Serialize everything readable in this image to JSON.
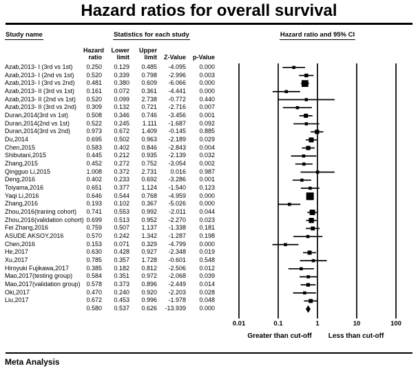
{
  "title": "Hazard ratios for overall survival",
  "headers": {
    "study": "Study name",
    "stats_group": "Statistics for each study",
    "plot_group": "Hazard ratio and 95% CI",
    "hazard_ratio": "Hazard\nratio",
    "lower_limit": "Lower\nlimit",
    "upper_limit": "Upper\nlimit",
    "z_value": "Z-Value",
    "p_value": "p-Value"
  },
  "axis": {
    "tick_labels": [
      "0.01",
      "0.1",
      "1",
      "10",
      "100"
    ],
    "left_label": "Greater than cut-off",
    "right_label": "Less than cut-off"
  },
  "footer": {
    "label": "Meta Analysis"
  },
  "colors": {
    "ink": "#000000",
    "background": "#ffffff"
  },
  "chart_data": {
    "type": "forest",
    "title": "Hazard ratios for overall survival",
    "x_scale": "log10",
    "x_ticks": [
      0.01,
      0.1,
      1,
      10,
      100
    ],
    "x_axis_left_label": "Greater than cut-off",
    "x_axis_right_label": "Less than cut-off",
    "studies": [
      {
        "name": "Azab,2013- I (3rd vs 1st)",
        "hr": 0.25,
        "lower": 0.129,
        "upper": 0.485,
        "z": -4.095,
        "p": 0.0
      },
      {
        "name": "Azab,2013- I (2nd vs 1st)",
        "hr": 0.52,
        "lower": 0.339,
        "upper": 0.798,
        "z": -2.996,
        "p": 0.003
      },
      {
        "name": "Azab,2013- I (3rd vs 2nd)",
        "hr": 0.481,
        "lower": 0.38,
        "upper": 0.609,
        "z": -6.066,
        "p": 0.0
      },
      {
        "name": "Azab,2013- II (3rd vs 1st)",
        "hr": 0.161,
        "lower": 0.072,
        "upper": 0.361,
        "z": -4.441,
        "p": 0.0
      },
      {
        "name": "Azab,2013- II (2nd vs 1st)",
        "hr": 0.52,
        "lower": 0.099,
        "upper": 2.738,
        "z": -0.772,
        "p": 0.44
      },
      {
        "name": "Azab,2013- II (3rd vs 2nd)",
        "hr": 0.309,
        "lower": 0.132,
        "upper": 0.721,
        "z": -2.716,
        "p": 0.007
      },
      {
        "name": "Duran,2014(3rd vs 1st)",
        "hr": 0.508,
        "lower": 0.346,
        "upper": 0.746,
        "z": -3.456,
        "p": 0.001
      },
      {
        "name": "Duran,2014(2nd vs 1st)",
        "hr": 0.522,
        "lower": 0.245,
        "upper": 1.111,
        "z": -1.687,
        "p": 0.092
      },
      {
        "name": "Duran,2014(3rd vs 2nd)",
        "hr": 0.973,
        "lower": 0.672,
        "upper": 1.409,
        "z": -0.145,
        "p": 0.885
      },
      {
        "name": "Du,2014",
        "hr": 0.695,
        "lower": 0.502,
        "upper": 0.963,
        "z": -2.189,
        "p": 0.029
      },
      {
        "name": "Chen,2015",
        "hr": 0.583,
        "lower": 0.402,
        "upper": 0.846,
        "z": -2.843,
        "p": 0.004
      },
      {
        "name": "Shibutani,2015",
        "hr": 0.445,
        "lower": 0.212,
        "upper": 0.935,
        "z": -2.139,
        "p": 0.032
      },
      {
        "name": "Zhang,2015",
        "hr": 0.452,
        "lower": 0.272,
        "upper": 0.752,
        "z": -3.054,
        "p": 0.002
      },
      {
        "name": "Qingguo Li,2015",
        "hr": 1.008,
        "lower": 0.372,
        "upper": 2.731,
        "z": 0.016,
        "p": 0.987
      },
      {
        "name": "Deng,2016",
        "hr": 0.402,
        "lower": 0.233,
        "upper": 0.692,
        "z": -3.286,
        "p": 0.001
      },
      {
        "name": "Toiyama,2016",
        "hr": 0.651,
        "lower": 0.377,
        "upper": 1.124,
        "z": -1.54,
        "p": 0.123
      },
      {
        "name": "Yaqi Li,2016",
        "hr": 0.646,
        "lower": 0.544,
        "upper": 0.768,
        "z": -4.959,
        "p": 0.0
      },
      {
        "name": "Zhang,2016",
        "hr": 0.193,
        "lower": 0.102,
        "upper": 0.367,
        "z": -5.026,
        "p": 0.0
      },
      {
        "name": "Zhou,2016(traning cohort)",
        "hr": 0.741,
        "lower": 0.553,
        "upper": 0.992,
        "z": -2.011,
        "p": 0.044
      },
      {
        "name": "Zhou,2016(validation cohort)",
        "hr": 0.699,
        "lower": 0.513,
        "upper": 0.952,
        "z": -2.27,
        "p": 0.023
      },
      {
        "name": "Fei Zhang,2016",
        "hr": 0.759,
        "lower": 0.507,
        "upper": 1.137,
        "z": -1.338,
        "p": 0.181
      },
      {
        "name": "ASUDE AKSOY,2016",
        "hr": 0.57,
        "lower": 0.242,
        "upper": 1.342,
        "z": -1.287,
        "p": 0.198
      },
      {
        "name": "Chen,2016",
        "hr": 0.153,
        "lower": 0.071,
        "upper": 0.329,
        "z": -4.799,
        "p": 0.0
      },
      {
        "name": "He,2017",
        "hr": 0.63,
        "lower": 0.428,
        "upper": 0.927,
        "z": -2.348,
        "p": 0.019
      },
      {
        "name": "Xu,2017",
        "hr": 0.785,
        "lower": 0.357,
        "upper": 1.728,
        "z": -0.601,
        "p": 0.548
      },
      {
        "name": "Hiroyuki Fujikawa,2017",
        "hr": 0.385,
        "lower": 0.182,
        "upper": 0.812,
        "z": -2.506,
        "p": 0.012
      },
      {
        "name": "Mao,2017(testing group)",
        "hr": 0.584,
        "lower": 0.351,
        "upper": 0.972,
        "z": -2.068,
        "p": 0.039
      },
      {
        "name": "Mao,2017(validation group)",
        "hr": 0.578,
        "lower": 0.373,
        "upper": 0.896,
        "z": -2.449,
        "p": 0.014
      },
      {
        "name": "Oki,2017",
        "hr": 0.47,
        "lower": 0.24,
        "upper": 0.92,
        "z": -2.203,
        "p": 0.028
      },
      {
        "name": "Liu,2017",
        "hr": 0.672,
        "lower": 0.453,
        "upper": 0.996,
        "z": -1.978,
        "p": 0.048
      }
    ],
    "summary": {
      "name": "",
      "hr": 0.58,
      "lower": 0.537,
      "upper": 0.626,
      "z": -13.939,
      "p": 0.0
    }
  }
}
